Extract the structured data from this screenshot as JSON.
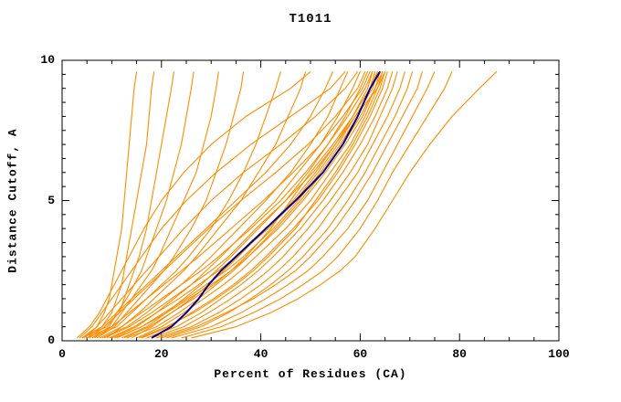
{
  "chart_data": {
    "type": "line",
    "title": "T1011",
    "xlabel": "Percent of Residues (CA)",
    "ylabel": "Distance Cutoff, A",
    "xlim": [
      0,
      100
    ],
    "ylim": [
      0,
      10
    ],
    "x_major_ticks": [
      0,
      20,
      40,
      60,
      80,
      100
    ],
    "x_tick_labels": [
      "0",
      "20",
      "40",
      "60",
      "80",
      "100"
    ],
    "x_minor_step": 5,
    "y_major_ticks": [
      0,
      5,
      10
    ],
    "y_tick_labels": [
      "0",
      "5",
      "10"
    ],
    "y_minor_step": 0.5,
    "grid": false,
    "legend": "none",
    "colors": {
      "models": "#FF8C00",
      "median": "#00008B",
      "axis": "#000000"
    },
    "y_levels": [
      0.1,
      0.5,
      1,
      1.5,
      2,
      2.5,
      3,
      4,
      5,
      6,
      7,
      8,
      9,
      9.6
    ],
    "series": {
      "models_x": [
        [
          4,
          7,
          8.5,
          9.5,
          10,
          10.5,
          11,
          12,
          12.5,
          13,
          13.5,
          14,
          14.5,
          15
        ],
        [
          5,
          8,
          10,
          11,
          12,
          12.5,
          13,
          14,
          15,
          16,
          17,
          17.5,
          18,
          18.5
        ],
        [
          4,
          9,
          11.5,
          12.5,
          13.5,
          14.5,
          15.5,
          17,
          18,
          19,
          20,
          21,
          22,
          22.5
        ],
        [
          6,
          9.5,
          11,
          13,
          14.5,
          16,
          17,
          19,
          21,
          22.5,
          24,
          25,
          26,
          26.5
        ],
        [
          5,
          10,
          12,
          14,
          16,
          18,
          19.5,
          22,
          24.5,
          27,
          28.5,
          30,
          31,
          31.5
        ],
        [
          7,
          10.5,
          13,
          15.5,
          18,
          20.5,
          22.5,
          26,
          29,
          31,
          33,
          34.5,
          36,
          36.5
        ],
        [
          6,
          11,
          14,
          17,
          20,
          23,
          25.5,
          30,
          33.5,
          36.5,
          39,
          41,
          43,
          44
        ],
        [
          9,
          12,
          15.5,
          18.5,
          21.5,
          24.5,
          27,
          31.5,
          36,
          39.5,
          43,
          45.5,
          48,
          49
        ],
        [
          4,
          8,
          11,
          14,
          17,
          20,
          23,
          29,
          35,
          41,
          46,
          50,
          53,
          54.5
        ],
        [
          8,
          13,
          17,
          20.5,
          24,
          27,
          30,
          35.5,
          41,
          46,
          50,
          53.5,
          56,
          57.5
        ],
        [
          10,
          15,
          19,
          22.5,
          26,
          29,
          32,
          37.5,
          43,
          47.5,
          52,
          55.5,
          58.5,
          60
        ],
        [
          12,
          17,
          21,
          24.5,
          28,
          31,
          34,
          39.5,
          45,
          49.5,
          53.5,
          57,
          60,
          61.5
        ],
        [
          14,
          18,
          22,
          26,
          29.5,
          32.5,
          35.5,
          41,
          46.5,
          51,
          55,
          58.5,
          61.5,
          62.5
        ],
        [
          11,
          16,
          20.5,
          25,
          29,
          33,
          36.5,
          42.5,
          47.5,
          52,
          56,
          59.5,
          62,
          63
        ],
        [
          13,
          19,
          23.5,
          27.5,
          31,
          34.5,
          37.5,
          43.5,
          48.5,
          53,
          57,
          60.5,
          63,
          64
        ],
        [
          15,
          20,
          24.5,
          28.5,
          32.5,
          36,
          39,
          45,
          50,
          54,
          58,
          61,
          63.5,
          64.5
        ],
        [
          16,
          21.5,
          26,
          30.5,
          34.5,
          38,
          41,
          46.5,
          51.5,
          55.5,
          59,
          62,
          64.5,
          65.5
        ],
        [
          17,
          23,
          28,
          32,
          36,
          39.5,
          42.5,
          48,
          52.5,
          56.5,
          60,
          63,
          65.5,
          66.5
        ],
        [
          18,
          24.5,
          29.5,
          34,
          38,
          41.5,
          44.5,
          49.5,
          54,
          58,
          61.5,
          64,
          66.5,
          67.5
        ],
        [
          19,
          26,
          31.5,
          36,
          40,
          43.5,
          46.5,
          51.5,
          55.5,
          59.5,
          62.5,
          65.5,
          68,
          69
        ],
        [
          21,
          28,
          33.5,
          38,
          42,
          45.5,
          48.5,
          53.5,
          57.5,
          61,
          64,
          67,
          69.5,
          70.5
        ],
        [
          20,
          27,
          33,
          38.5,
          43,
          47,
          50,
          55,
          59,
          62.5,
          65.5,
          68.5,
          71.5,
          72.5
        ],
        [
          22,
          30,
          36,
          41,
          45.5,
          49.5,
          52.5,
          57.5,
          61.5,
          64.5,
          67.5,
          70.5,
          73.5,
          75
        ],
        [
          24,
          32,
          38.5,
          44,
          48.5,
          52.5,
          55.5,
          60,
          63.5,
          66.5,
          70,
          73.5,
          77,
          78.5
        ],
        [
          26,
          35,
          42,
          47.5,
          52,
          56,
          59,
          63,
          66.5,
          70,
          74,
          78.5,
          84,
          87.5
        ],
        [
          3.5,
          6,
          8,
          10,
          12,
          14,
          16,
          20,
          25,
          31,
          38,
          46,
          54,
          57
        ],
        [
          4.5,
          7,
          9.5,
          12,
          14.5,
          17,
          19.5,
          24.5,
          30,
          36.5,
          44,
          51,
          57,
          59.5
        ],
        [
          5.5,
          8.5,
          11.5,
          14.5,
          17.5,
          20.5,
          23.5,
          29.5,
          36,
          43,
          49.5,
          55,
          59.5,
          61
        ],
        [
          6.5,
          10,
          13.5,
          17,
          20.5,
          24,
          27.5,
          34,
          40.5,
          46.5,
          52,
          56.5,
          60.5,
          62
        ],
        [
          7.5,
          12,
          16,
          20,
          24,
          28,
          31.5,
          38,
          44,
          49,
          53.5,
          57.5,
          61,
          62.5
        ],
        [
          9.5,
          14.5,
          19,
          23.5,
          27.5,
          31.5,
          35,
          41.5,
          47,
          51.5,
          55.5,
          59,
          62.5,
          63.5
        ],
        [
          3,
          5.5,
          7.5,
          9,
          10.5,
          12,
          13.5,
          16.5,
          20,
          24.5,
          30,
          37,
          46,
          50
        ],
        [
          12.5,
          17.5,
          22,
          26.5,
          30.5,
          34,
          37,
          42,
          46,
          50,
          54.5,
          58.5,
          62,
          63.5
        ],
        [
          15.5,
          21,
          26.5,
          31,
          35,
          38.5,
          41.5,
          47,
          51,
          55,
          58.5,
          61.5,
          64,
          65
        ],
        [
          10.5,
          16,
          21,
          25.5,
          30,
          34,
          37.5,
          43,
          48,
          52.5,
          56.5,
          60,
          63,
          64.5
        ],
        [
          8.5,
          13.5,
          18,
          22,
          26,
          30,
          33.5,
          39,
          45,
          50.5,
          55,
          59,
          63.5,
          65
        ]
      ],
      "median_x": [
        18,
        22,
        25,
        27.5,
        29.5,
        32,
        35,
        41,
        47,
        52.5,
        56.5,
        59.5,
        62,
        64
      ]
    }
  }
}
